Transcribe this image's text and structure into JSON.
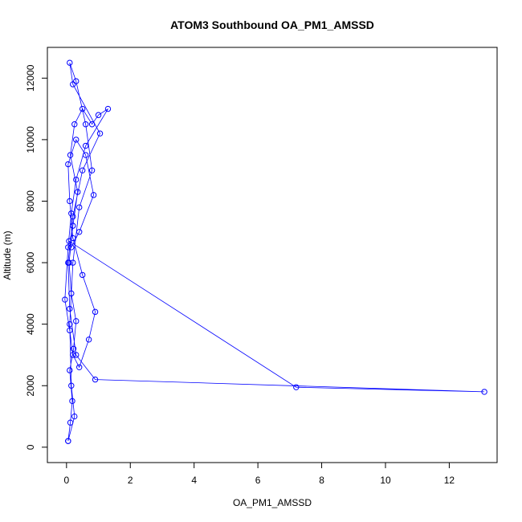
{
  "chart_data": {
    "type": "line",
    "title": "ATOM3 Southbound OA_PM1_AMSSD",
    "xlabel": "OA_PM1_AMSSD",
    "ylabel": "Altitude (m)",
    "xlim": [
      -0.6,
      13.5
    ],
    "ylim": [
      -500,
      13000
    ],
    "xticks": [
      0,
      2,
      4,
      6,
      8,
      10,
      12
    ],
    "yticks": [
      0,
      2000,
      4000,
      6000,
      8000,
      10000,
      12000
    ],
    "grid": false,
    "marker": "open-circle",
    "color": "#0000ff",
    "series": [
      {
        "name": "",
        "x": [
          0.05,
          0.12,
          0.18,
          0.1,
          0.22,
          0.3,
          0.15,
          0.08,
          0.2,
          0.35,
          0.12,
          0.25,
          0.5,
          0.8,
          1.0,
          1.3,
          0.6,
          0.3,
          0.15,
          0.05,
          -0.05,
          0.1,
          0.2,
          0.4,
          0.7,
          0.9,
          0.5,
          0.2,
          0.1,
          0.05,
          0.3,
          0.6,
          0.85,
          0.4,
          0.15,
          0.08,
          7.2,
          13.1,
          0.9,
          0.3,
          0.1,
          0.05,
          0.2,
          0.5,
          1.05,
          0.2,
          0.1,
          0.3,
          0.6,
          0.8,
          0.4,
          0.2,
          0.1,
          0.15,
          0.25,
          0.05
        ],
        "y": [
          200,
          800,
          1500,
          2500,
          3200,
          4100,
          5000,
          6000,
          7200,
          8300,
          9500,
          10500,
          11000,
          10500,
          10800,
          11000,
          9800,
          8700,
          7600,
          6500,
          4800,
          3800,
          3000,
          2600,
          3500,
          4400,
          5600,
          6800,
          8000,
          9200,
          10000,
          9500,
          8200,
          7000,
          6500,
          6700,
          1950,
          1800,
          2200,
          3000,
          4500,
          6000,
          7500,
          9000,
          10200,
          11800,
          12500,
          11900,
          10500,
          9000,
          7800,
          6000,
          4000,
          2000,
          1000,
          200
        ]
      }
    ]
  }
}
